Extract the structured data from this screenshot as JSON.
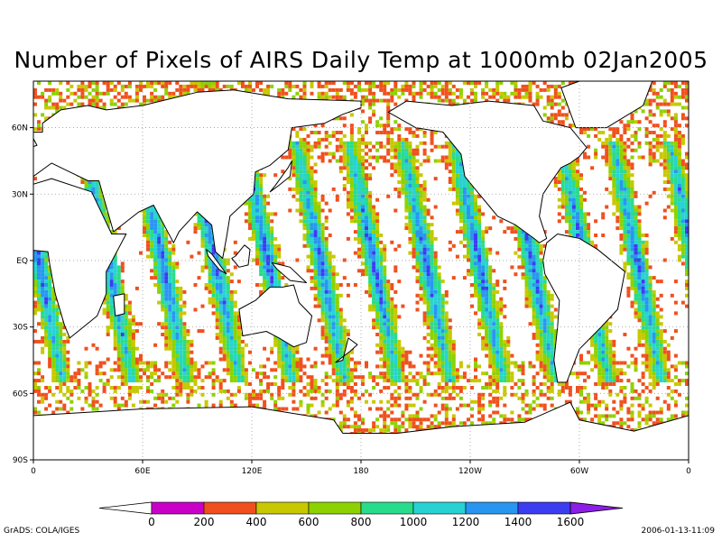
{
  "title": "Number of Pixels of AIRS Daily Temp at 1000mb  02Jan2005",
  "map": {
    "lat_labels": [
      "60N",
      "30N",
      "EQ",
      "30S",
      "60S",
      "90S"
    ],
    "lat_values": [
      60,
      30,
      0,
      -30,
      -60,
      -90
    ],
    "lon_labels": [
      "0",
      "60E",
      "120E",
      "180",
      "120W",
      "60W",
      "0"
    ],
    "lon_values": [
      0,
      60,
      120,
      180,
      240,
      300,
      360
    ],
    "lat_range": [
      -90,
      90
    ],
    "lon_range": [
      0,
      360
    ],
    "grid": "dotted",
    "frame_top_latitude": 81,
    "swath_start_longitudes": [
      2,
      40,
      70,
      99,
      128,
      157,
      186,
      215,
      244,
      273,
      302,
      331
    ],
    "swath_tilt_degrees": 22,
    "swath_width_degrees": 11,
    "background": "#ffffff",
    "land_fill": "#ffffff",
    "coast_color": "#000000"
  },
  "colorbar": {
    "labels": [
      "0",
      "200",
      "400",
      "600",
      "800",
      "1000",
      "1200",
      "1400",
      "1600"
    ],
    "values": [
      0,
      200,
      400,
      600,
      800,
      1000,
      1200,
      1400,
      1600
    ],
    "colors": [
      "#ffffff",
      "#c800c8",
      "#f0501e",
      "#c8c800",
      "#8cd200",
      "#28dc8c",
      "#28d2d2",
      "#2896f0",
      "#3c3cf0",
      "#8c1ee6"
    ]
  },
  "footer": {
    "credit": "GrADS: COLA/IGES",
    "timestamp": "2006-01-13-11:09"
  }
}
